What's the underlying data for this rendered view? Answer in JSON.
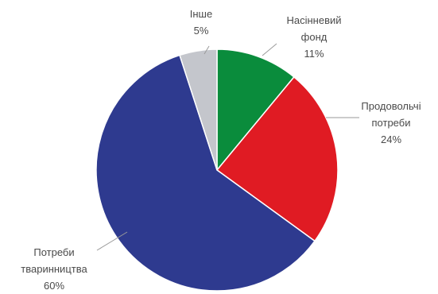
{
  "chart_data": {
    "type": "pie",
    "slices": [
      {
        "label_lines": [
          "Насінневий",
          "фонд"
        ],
        "value": 11,
        "value_label": "11%",
        "color": "#0a8c3c"
      },
      {
        "label_lines": [
          "Продовольчі",
          "потреби"
        ],
        "value": 24,
        "value_label": "24%",
        "color": "#e01b23"
      },
      {
        "label_lines": [
          "Потреби",
          "тваринництва"
        ],
        "value": 60,
        "value_label": "60%",
        "color": "#2e3a8f"
      },
      {
        "label_lines": [
          "Інше"
        ],
        "value": 5,
        "value_label": "5%",
        "color": "#c4c6cc"
      }
    ],
    "start_angle_deg": 0,
    "direction": "clockwise"
  }
}
